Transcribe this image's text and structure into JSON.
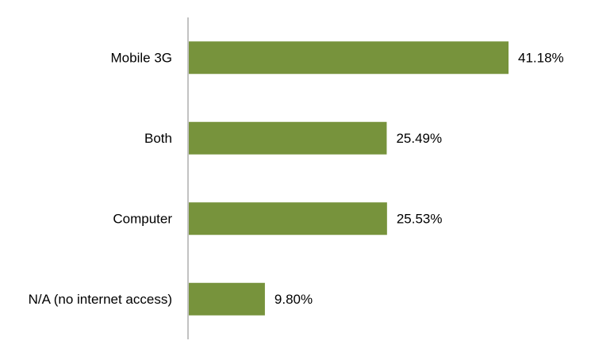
{
  "chart_data": {
    "type": "bar",
    "orientation": "horizontal",
    "categories": [
      "Mobile 3G",
      "Both",
      "Computer",
      "N/A (no internet access)"
    ],
    "values": [
      41.18,
      25.49,
      25.53,
      9.8
    ],
    "data_labels": [
      "41.18%",
      "25.49%",
      "25.53%",
      "9.80%"
    ],
    "unit": "%",
    "xlim": [
      0,
      50
    ],
    "grid": false,
    "legend": "none",
    "colors": {
      "bar": "#77933C",
      "axis": "#868686",
      "text": "#000000"
    }
  }
}
